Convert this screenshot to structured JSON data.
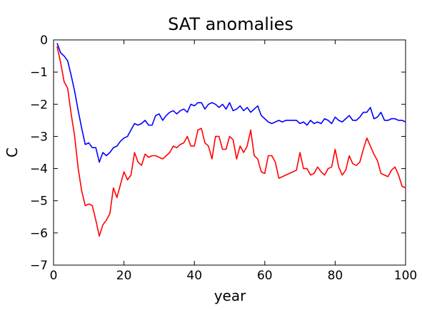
{
  "chart_data": {
    "type": "line",
    "title": "SAT anomalies",
    "xlabel": "year",
    "ylabel": "C",
    "xlim": [
      0,
      100
    ],
    "ylim": [
      -7,
      0
    ],
    "xticks": [
      0,
      20,
      40,
      60,
      80,
      100
    ],
    "yticks": [
      0,
      -1,
      -2,
      -3,
      -4,
      -5,
      -6,
      -7
    ],
    "xtick_labels": [
      "0",
      "20",
      "40",
      "60",
      "80",
      "100"
    ],
    "ytick_labels": [
      "0",
      "−1",
      "−2",
      "−3",
      "−4",
      "−5",
      "−6",
      "−7"
    ],
    "grid": false,
    "legend": false,
    "series": [
      {
        "color": "#0000ff",
        "x": [
          1,
          2,
          3,
          4,
          5,
          6,
          7,
          8,
          9,
          10,
          11,
          12,
          13,
          14,
          15,
          16,
          17,
          18,
          19,
          20,
          21,
          22,
          23,
          24,
          25,
          26,
          27,
          28,
          29,
          30,
          31,
          32,
          33,
          34,
          35,
          36,
          37,
          38,
          39,
          40,
          41,
          42,
          43,
          44,
          45,
          46,
          47,
          48,
          49,
          50,
          51,
          52,
          53,
          54,
          55,
          56,
          57,
          58,
          59,
          60,
          61,
          62,
          63,
          64,
          65,
          66,
          67,
          68,
          69,
          70,
          71,
          72,
          73,
          74,
          75,
          76,
          77,
          78,
          79,
          80,
          81,
          82,
          83,
          84,
          85,
          86,
          87,
          88,
          89,
          90,
          91,
          92,
          93,
          94,
          95,
          96,
          97,
          98,
          99,
          100
        ],
        "values": [
          -0.1,
          -0.4,
          -0.5,
          -0.65,
          -1.1,
          -1.6,
          -2.2,
          -2.75,
          -3.25,
          -3.2,
          -3.35,
          -3.35,
          -3.8,
          -3.5,
          -3.6,
          -3.5,
          -3.35,
          -3.3,
          -3.15,
          -3.05,
          -3.0,
          -2.8,
          -2.6,
          -2.65,
          -2.6,
          -2.5,
          -2.65,
          -2.65,
          -2.35,
          -2.3,
          -2.5,
          -2.35,
          -2.25,
          -2.2,
          -2.3,
          -2.2,
          -2.15,
          -2.25,
          -2.0,
          -2.05,
          -1.95,
          -1.95,
          -2.15,
          -2.0,
          -1.95,
          -2.0,
          -2.1,
          -2.0,
          -2.15,
          -1.95,
          -2.2,
          -2.15,
          -2.05,
          -2.2,
          -2.1,
          -2.25,
          -2.15,
          -2.05,
          -2.35,
          -2.45,
          -2.55,
          -2.6,
          -2.55,
          -2.5,
          -2.55,
          -2.5,
          -2.5,
          -2.5,
          -2.5,
          -2.6,
          -2.55,
          -2.65,
          -2.5,
          -2.6,
          -2.55,
          -2.6,
          -2.45,
          -2.5,
          -2.6,
          -2.4,
          -2.5,
          -2.55,
          -2.45,
          -2.35,
          -2.5,
          -2.5,
          -2.4,
          -2.25,
          -2.25,
          -2.1,
          -2.45,
          -2.4,
          -2.25,
          -2.5,
          -2.5,
          -2.45,
          -2.45,
          -2.5,
          -2.5,
          -2.55
        ]
      },
      {
        "color": "#ff0000",
        "x": [
          1,
          2,
          3,
          4,
          5,
          6,
          7,
          8,
          9,
          10,
          11,
          12,
          13,
          14,
          15,
          16,
          17,
          18,
          19,
          20,
          21,
          22,
          23,
          24,
          25,
          26,
          27,
          28,
          29,
          30,
          31,
          32,
          33,
          34,
          35,
          36,
          37,
          38,
          39,
          40,
          41,
          42,
          43,
          44,
          45,
          46,
          47,
          48,
          49,
          50,
          51,
          52,
          53,
          54,
          55,
          56,
          57,
          58,
          59,
          60,
          61,
          62,
          63,
          64,
          65,
          66,
          67,
          68,
          69,
          70,
          71,
          72,
          73,
          74,
          75,
          76,
          77,
          78,
          79,
          80,
          81,
          82,
          83,
          84,
          85,
          86,
          87,
          88,
          89,
          90,
          91,
          92,
          93,
          94,
          95,
          96,
          97,
          98,
          99,
          100
        ],
        "values": [
          -0.2,
          -0.7,
          -1.3,
          -1.5,
          -2.3,
          -3.0,
          -4.0,
          -4.7,
          -5.15,
          -5.1,
          -5.15,
          -5.6,
          -6.1,
          -5.75,
          -5.6,
          -5.4,
          -4.6,
          -4.9,
          -4.5,
          -4.1,
          -4.35,
          -4.2,
          -3.5,
          -3.8,
          -3.9,
          -3.55,
          -3.65,
          -3.6,
          -3.6,
          -3.65,
          -3.7,
          -3.6,
          -3.5,
          -3.3,
          -3.35,
          -3.25,
          -3.2,
          -3.0,
          -3.3,
          -3.3,
          -2.8,
          -2.75,
          -3.2,
          -3.3,
          -3.7,
          -3.0,
          -3.0,
          -3.4,
          -3.4,
          -3.0,
          -3.1,
          -3.7,
          -3.3,
          -3.5,
          -3.3,
          -2.8,
          -3.6,
          -3.7,
          -4.1,
          -4.15,
          -3.6,
          -3.6,
          -3.8,
          -4.3,
          -4.25,
          -4.2,
          -4.15,
          -4.1,
          -4.05,
          -3.5,
          -4.0,
          -4.0,
          -4.2,
          -4.15,
          -3.95,
          -4.1,
          -4.2,
          -4.0,
          -3.95,
          -3.4,
          -3.95,
          -4.2,
          -4.05,
          -3.6,
          -3.85,
          -3.9,
          -3.8,
          -3.4,
          -3.05,
          -3.3,
          -3.55,
          -3.75,
          -4.15,
          -4.2,
          -4.25,
          -4.05,
          -3.95,
          -4.2,
          -4.55,
          -4.6
        ]
      }
    ]
  }
}
